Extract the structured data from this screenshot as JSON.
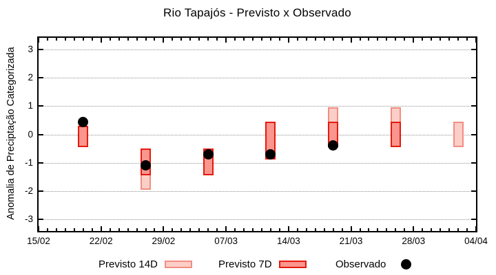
{
  "title": "Rio Tapajós - Previsto x Observado",
  "chart_data": {
    "type": "ranged-bar-with-points",
    "title": "Rio Tapajós - Previsto x Observado",
    "xlabel": "",
    "ylabel": "Anomalia de Preciptação Categorizada",
    "ylim": [
      -3.42,
      3.42
    ],
    "y_ticks": [
      -3,
      -2,
      -1,
      0,
      1,
      2,
      3
    ],
    "grid": "horizontal-dotted",
    "x_axis": {
      "total_days": 49,
      "major_tick_every_days": 7,
      "minor_tick_every_days": 1,
      "tick_labels": [
        "15/02",
        "22/02",
        "29/02",
        "07/03",
        "14/03",
        "21/03",
        "28/03",
        "04/04"
      ]
    },
    "legend": {
      "position": "below-axis",
      "items": [
        {
          "label": "Previsto 14D",
          "series": "previsto_14d",
          "swatch": "light-pink-box"
        },
        {
          "label": "Previsto 7D",
          "series": "previsto_7d",
          "swatch": "red-box"
        },
        {
          "label": "Observado",
          "series": "observado",
          "swatch": "black-dot"
        }
      ]
    },
    "series_points": [
      {
        "date": "20/02",
        "day_offset": 5,
        "previsto_14d": null,
        "previsto_7d": [
          -0.45,
          0.3
        ],
        "observado": 0.45
      },
      {
        "date": "27/02",
        "day_offset": 12,
        "previsto_14d": [
          -1.95,
          -0.5
        ],
        "previsto_7d": [
          -1.45,
          -0.5
        ],
        "observado": -1.1
      },
      {
        "date": "05/03",
        "day_offset": 19,
        "previsto_14d": null,
        "previsto_7d": [
          -1.45,
          -0.5
        ],
        "observado": -0.7
      },
      {
        "date": "12/03",
        "day_offset": 26,
        "previsto_14d": null,
        "previsto_7d": [
          -0.9,
          0.45
        ],
        "observado": -0.7
      },
      {
        "date": "19/03",
        "day_offset": 33,
        "previsto_14d": [
          -0.45,
          0.95
        ],
        "previsto_7d": [
          -0.45,
          0.45
        ],
        "observado": -0.4
      },
      {
        "date": "26/03",
        "day_offset": 40,
        "previsto_14d": [
          -0.45,
          0.95
        ],
        "previsto_7d": [
          -0.45,
          0.45
        ],
        "observado": null
      },
      {
        "date": "02/04",
        "day_offset": 47,
        "previsto_14d": [
          -0.45,
          0.45
        ],
        "previsto_7d": null,
        "observado": null
      }
    ],
    "colors": {
      "previsto_14d_fill": "#fbcfc8",
      "previsto_14d_border": "#f18d81",
      "previsto_7d_fill": "#fa968d",
      "previsto_7d_border": "#e6190e",
      "observado": "#000000",
      "grid": "#909090",
      "axis": "#000000"
    }
  }
}
